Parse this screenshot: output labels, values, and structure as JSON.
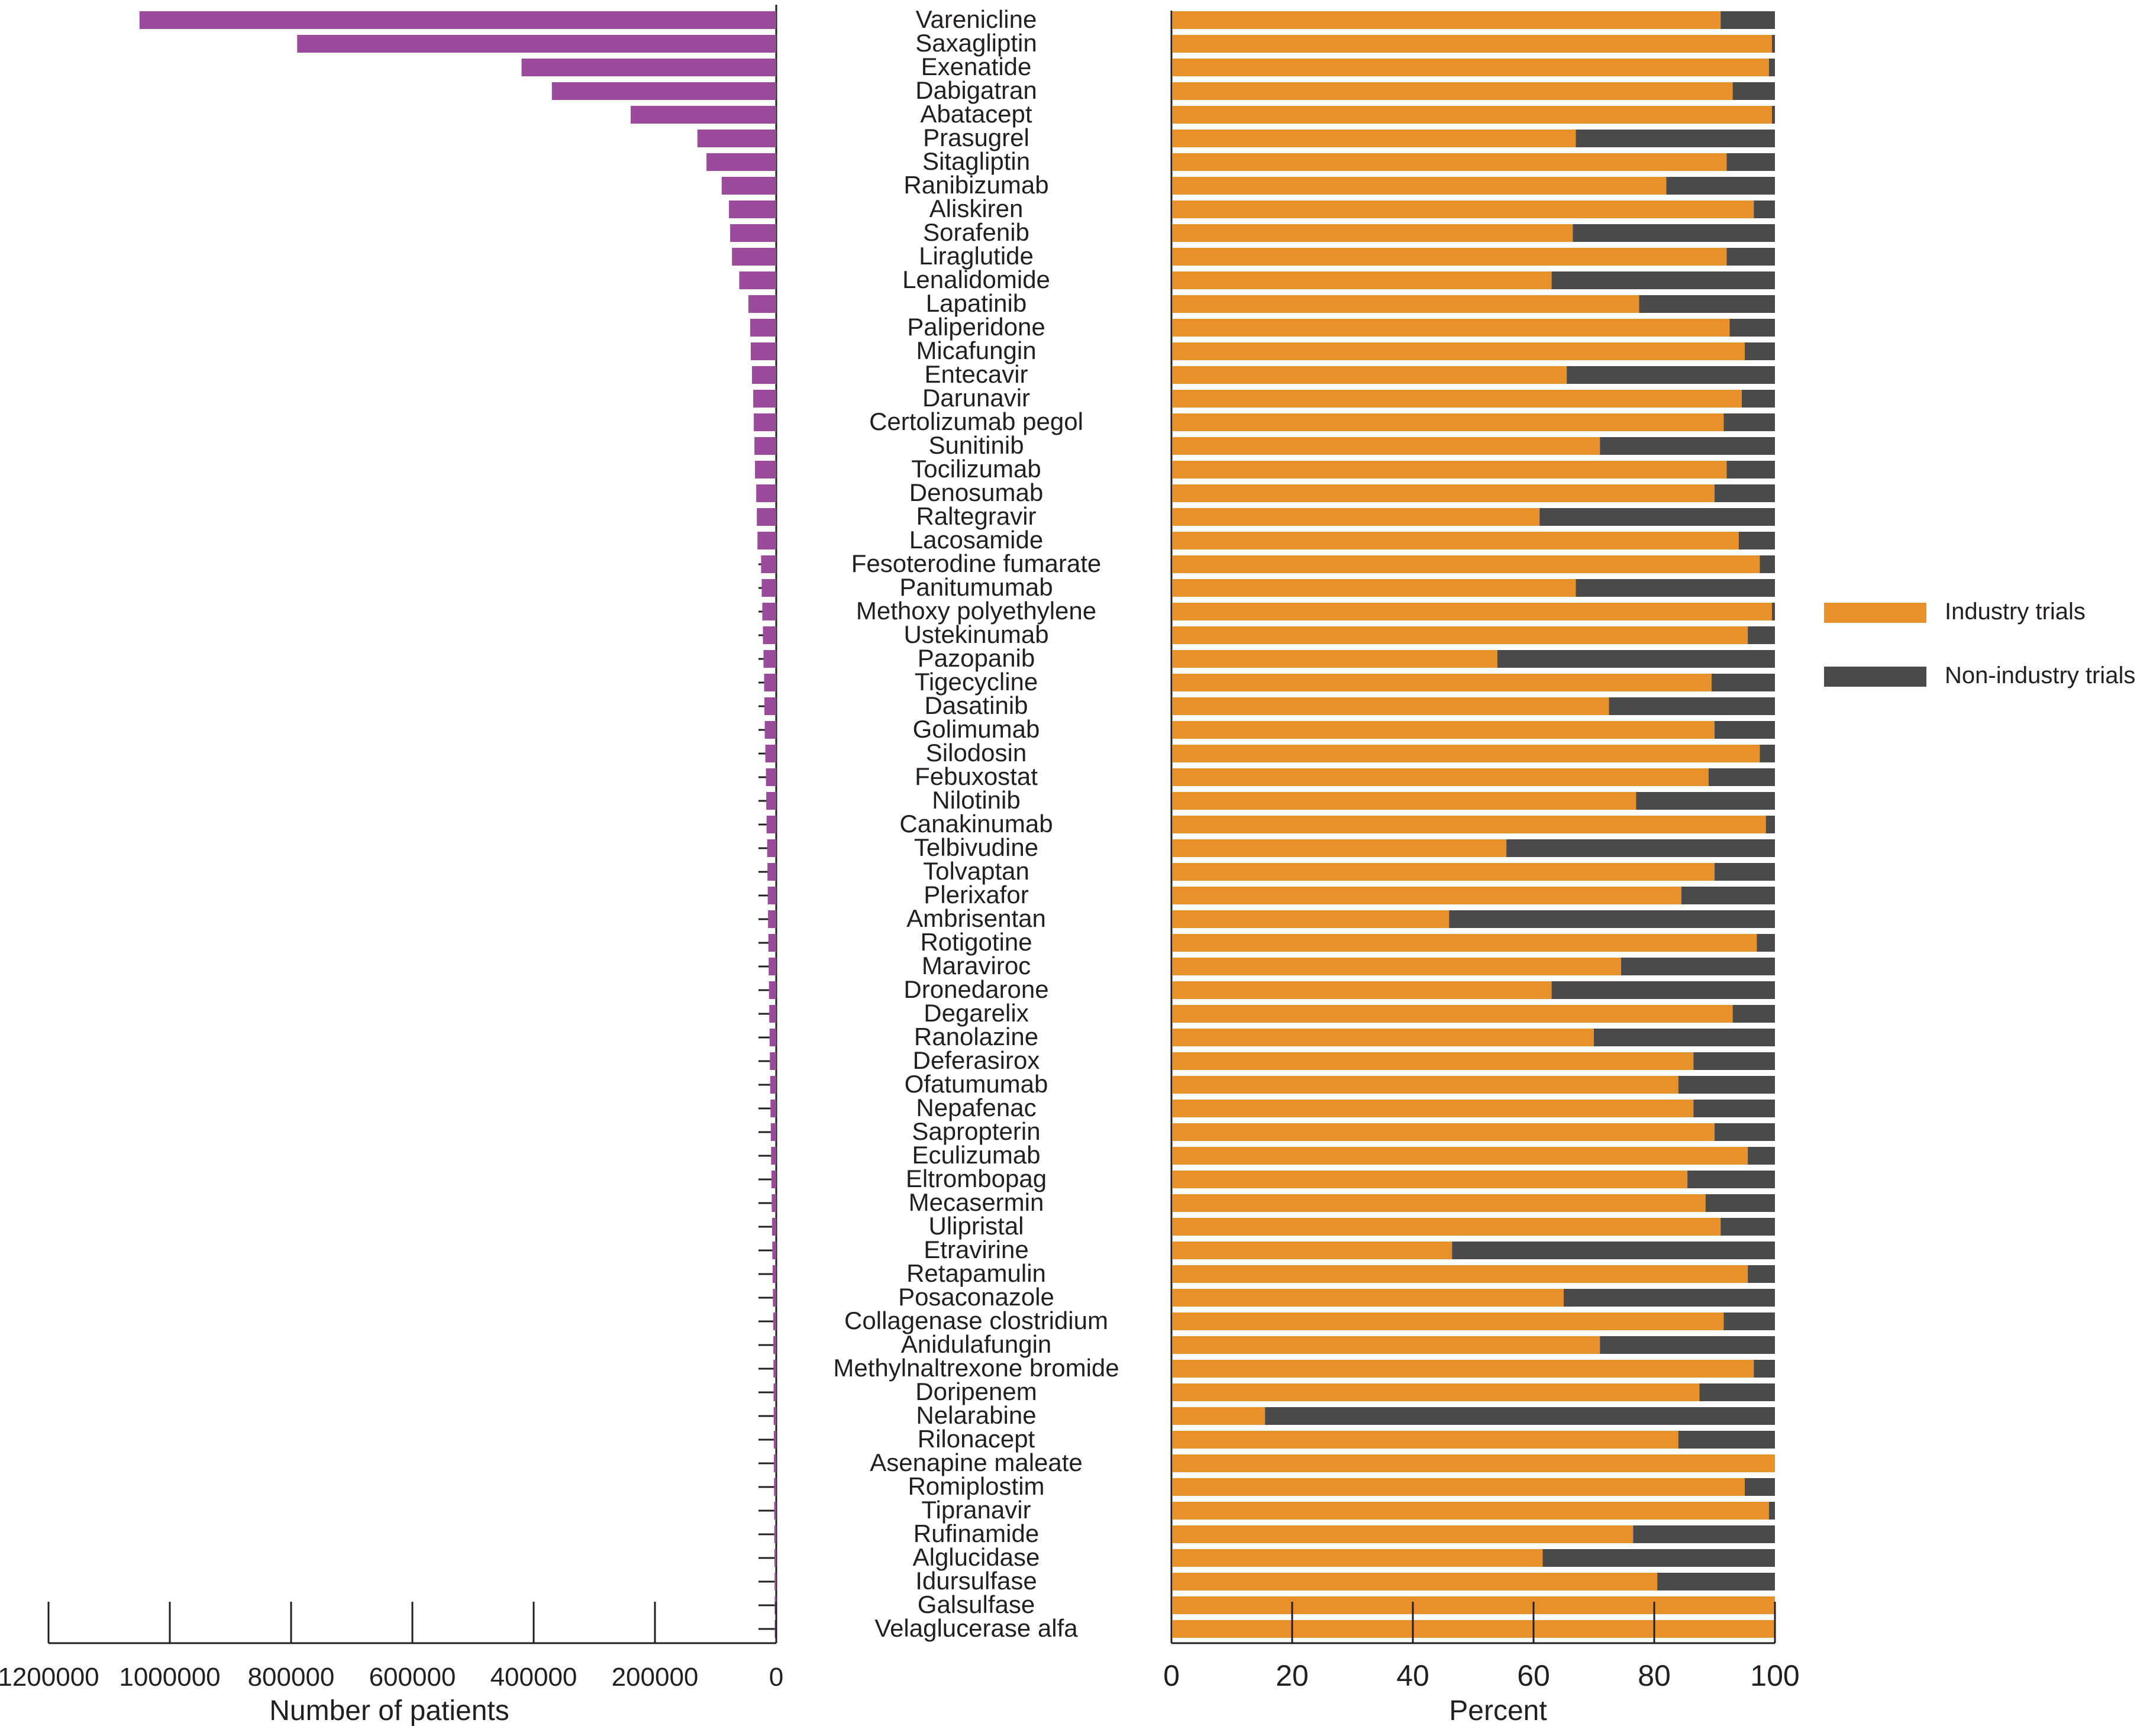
{
  "chart_data": [
    {
      "type": "bar",
      "orientation": "horizontal-reversed",
      "xlabel": "Number of patients",
      "xlim": [
        0,
        1200000
      ],
      "xticks": [
        0,
        200000,
        400000,
        600000,
        800000,
        1000000,
        1200000
      ],
      "xtick_labels": [
        "0",
        "200000",
        "400000",
        "600000",
        "800000",
        "1000000",
        "1200000"
      ],
      "color": "#9b4b9c",
      "categories": [
        "Varenicline",
        "Saxagliptin",
        "Exenatide",
        "Dabigatran",
        "Abatacept",
        "Prasugrel",
        "Sitagliptin",
        "Ranibizumab",
        "Aliskiren",
        "Sorafenib",
        "Liraglutide",
        "Lenalidomide",
        "Lapatinib",
        "Paliperidone",
        "Micafungin",
        "Entecavir",
        "Darunavir",
        "Certolizumab pegol",
        "Sunitinib",
        "Tocilizumab",
        "Denosumab",
        "Raltegravir",
        "Lacosamide",
        "Fesoterodine fumarate",
        "Panitumumab",
        "Methoxy polyethylene",
        "Ustekinumab",
        "Pazopanib",
        "Tigecycline",
        "Dasatinib",
        "Golimumab",
        "Silodosin",
        "Febuxostat",
        "Nilotinib",
        "Canakinumab",
        "Telbivudine",
        "Tolvaptan",
        "Plerixafor",
        "Ambrisentan",
        "Rotigotine",
        "Maraviroc",
        "Dronedarone",
        "Degarelix",
        "Ranolazine",
        "Deferasirox",
        "Ofatumumab",
        "Nepafenac",
        "Sapropterin",
        "Eculizumab",
        "Eltrombopag",
        "Mecasermin",
        "Ulipristal",
        "Etravirine",
        "Retapamulin",
        "Posaconazole",
        "Collagenase clostridium",
        "Anidulafungin",
        "Methylnaltrexone bromide",
        "Doripenem",
        "Nelarabine",
        "Rilonacept",
        "Asenapine maleate",
        "Romiplostim",
        "Tipranavir",
        "Rufinamide",
        "Alglucidase",
        "Idursulfase",
        "Galsulfase",
        "Velaglucerase alfa"
      ],
      "values": [
        1050000,
        790000,
        420000,
        370000,
        240000,
        130000,
        115000,
        90000,
        78000,
        76000,
        73000,
        61000,
        46000,
        43000,
        42000,
        40000,
        38000,
        37000,
        36000,
        35000,
        33000,
        32000,
        31000,
        25000,
        24000,
        23000,
        22000,
        21000,
        20000,
        19500,
        19000,
        18000,
        17000,
        16500,
        16000,
        15000,
        14500,
        14000,
        13500,
        13000,
        12500,
        12000,
        11500,
        11000,
        10500,
        10000,
        9500,
        9000,
        8500,
        8000,
        7500,
        7000,
        6500,
        6000,
        5500,
        5000,
        4800,
        4600,
        4400,
        4200,
        4000,
        3800,
        3600,
        3400,
        3200,
        3000,
        2800,
        2600,
        2400
      ]
    },
    {
      "type": "bar",
      "stacked": true,
      "orientation": "horizontal",
      "xlabel": "Percent",
      "xlim": [
        0,
        100
      ],
      "xticks": [
        0,
        20,
        40,
        60,
        80,
        100
      ],
      "xtick_labels": [
        "0",
        "20",
        "40",
        "60",
        "80",
        "100"
      ],
      "legend_position": "right",
      "series": [
        {
          "name": "Industry trials",
          "color": "#e8902a",
          "values": [
            91,
            99.5,
            99,
            93,
            99.5,
            67,
            92,
            82,
            96.5,
            66.5,
            92,
            63,
            77.5,
            92.5,
            95,
            65.5,
            94.5,
            91.5,
            71,
            92,
            90,
            61,
            94,
            97.5,
            67,
            99.5,
            95.5,
            54,
            89.5,
            72.5,
            90,
            97.5,
            89,
            77,
            98.5,
            55.5,
            90,
            84.5,
            46,
            97,
            74.5,
            63,
            93,
            70,
            86.5,
            84,
            86.5,
            90,
            95.5,
            85.5,
            88.5,
            91,
            46.5,
            95.5,
            65,
            91.5,
            71,
            96.5,
            87.5,
            15.5,
            84,
            100,
            95,
            99,
            76.5,
            61.5,
            80.5,
            100,
            100
          ]
        },
        {
          "name": "Non-industry trials",
          "color": "#4a4a4a",
          "values": [
            9,
            0.5,
            1,
            7,
            0.5,
            33,
            8,
            18,
            3.5,
            33.5,
            8,
            37,
            22.5,
            7.5,
            5,
            34.5,
            5.5,
            8.5,
            29,
            8,
            10,
            39,
            6,
            2.5,
            33,
            0.5,
            4.5,
            46,
            10.5,
            27.5,
            10,
            2.5,
            11,
            23,
            1.5,
            44.5,
            10,
            15.5,
            54,
            3,
            25.5,
            37,
            7,
            30,
            13.5,
            16,
            13.5,
            10,
            4.5,
            14.5,
            11.5,
            9,
            53.5,
            4.5,
            35,
            8.5,
            29,
            3.5,
            12.5,
            84.5,
            16,
            0,
            5,
            1,
            23.5,
            38.5,
            19.5,
            0,
            0
          ]
        }
      ]
    }
  ]
}
